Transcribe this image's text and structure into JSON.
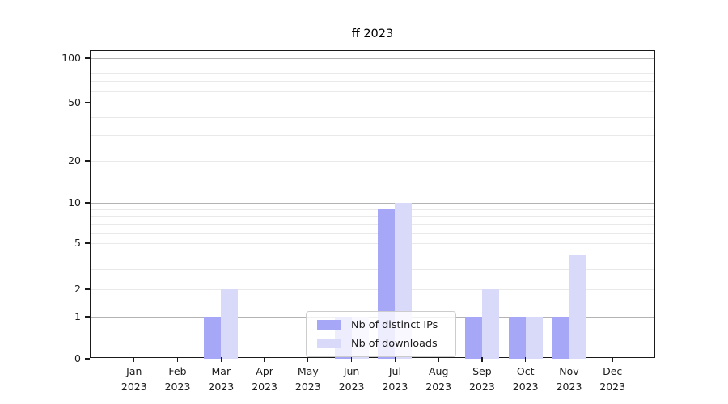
{
  "figure": {
    "title": "ff 2023"
  },
  "chart_data": {
    "type": "bar",
    "title": "ff 2023",
    "categories": [
      "Jan 2023",
      "Feb 2023",
      "Mar 2023",
      "Apr 2023",
      "May 2023",
      "Jun 2023",
      "Jul 2023",
      "Aug 2023",
      "Sep 2023",
      "Oct 2023",
      "Nov 2023",
      "Dec 2023"
    ],
    "series": [
      {
        "name": "Nb of distinct IPs",
        "color": "#a7a7f8",
        "values": [
          0,
          0,
          1,
          0,
          0,
          1,
          9,
          0,
          1,
          1,
          1,
          0
        ]
      },
      {
        "name": "Nb of downloads",
        "color": "#d9d9fa",
        "values": [
          0,
          0,
          2,
          0,
          0,
          1,
          10,
          0,
          2,
          1,
          4,
          0
        ]
      }
    ],
    "xlabel": "",
    "ylabel": "",
    "y_axis": {
      "scale": "log above 1, linear 0-1",
      "ylim": [
        0,
        112
      ],
      "tick_values": [
        0,
        1,
        2,
        5,
        10,
        20,
        50,
        100
      ],
      "tick_labels": [
        "0",
        "1",
        "2",
        "5",
        "10",
        "20",
        "50",
        "100"
      ]
    },
    "grid": {
      "on": true,
      "major_lines": [
        1,
        10,
        100
      ],
      "minor_lines": [
        2,
        3,
        4,
        5,
        6,
        7,
        8,
        9,
        20,
        30,
        40,
        50,
        60,
        70,
        80,
        90
      ]
    },
    "legend": {
      "position": "inside bottom-center",
      "entries": [
        "Nb of distinct IPs",
        "Nb of downloads"
      ]
    }
  }
}
